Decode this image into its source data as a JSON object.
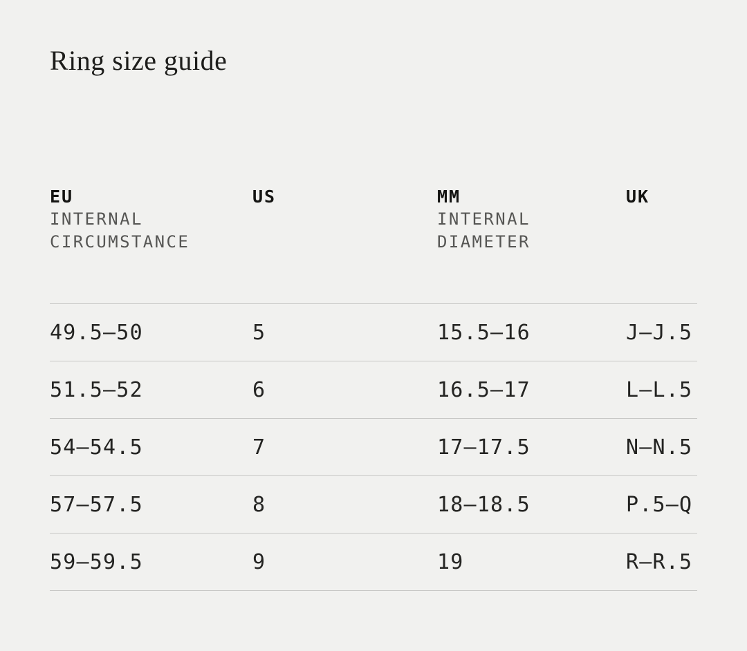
{
  "title": "Ring size guide",
  "colors": {
    "background": "#f1f1ef",
    "text": "#242422",
    "muted_sublabel": "#565654",
    "divider": "#c8c8c6"
  },
  "table": {
    "columns": [
      {
        "label": "EU",
        "sublines": [
          "INTERNAL",
          "CIRCUMSTANCE"
        ]
      },
      {
        "label": "US",
        "sublines": []
      },
      {
        "label": "MM",
        "sublines": [
          "INTERNAL",
          "DIAMETER"
        ]
      },
      {
        "label": "UK",
        "sublines": []
      }
    ],
    "rows": [
      [
        "49.5—50",
        "5",
        "15.5—16",
        "J—J.5"
      ],
      [
        "51.5—52",
        "6",
        "16.5—17",
        "L—L.5"
      ],
      [
        "54—54.5",
        "7",
        "17—17.5",
        "N—N.5"
      ],
      [
        "57—57.5",
        "8",
        "18—18.5",
        "P.5—Q"
      ],
      [
        "59—59.5",
        "9",
        "19",
        "R—R.5"
      ]
    ]
  }
}
